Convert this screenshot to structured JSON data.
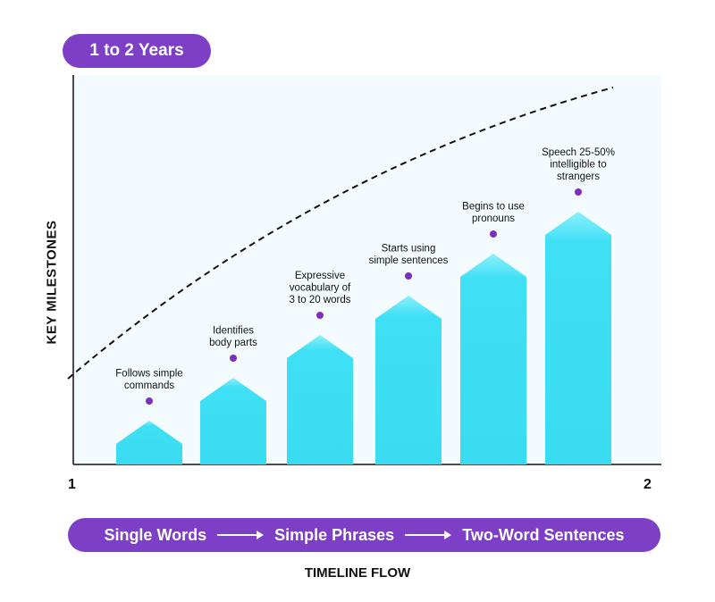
{
  "title": "1 to 2 Years",
  "y_axis_label": "KEY MILESTONES",
  "x_axis_label": "TIMELINE FLOW",
  "x_ticks": [
    "1",
    "2"
  ],
  "flow": {
    "steps": [
      "Single Words",
      "Simple Phrases",
      "Two-Word Sentences"
    ]
  },
  "milestones": [
    {
      "lines": [
        "Follows simple",
        "commands"
      ],
      "level": 1
    },
    {
      "lines": [
        "Identifies",
        "body parts"
      ],
      "level": 2
    },
    {
      "lines": [
        "Expressive",
        "vocabulary of",
        "3 to 20 words"
      ],
      "level": 3
    },
    {
      "lines": [
        "Starts using",
        "simple sentences"
      ],
      "level": 4
    },
    {
      "lines": [
        "Begins to use",
        "pronouns"
      ],
      "level": 5
    },
    {
      "lines": [
        "Speech 25-50%",
        "intelligible to",
        "strangers"
      ],
      "level": 6
    }
  ],
  "colors": {
    "accent_purple": "#7c3fc5",
    "bar_cyan": "#3fe0f5",
    "dot_purple": "#7a2fc0"
  }
}
